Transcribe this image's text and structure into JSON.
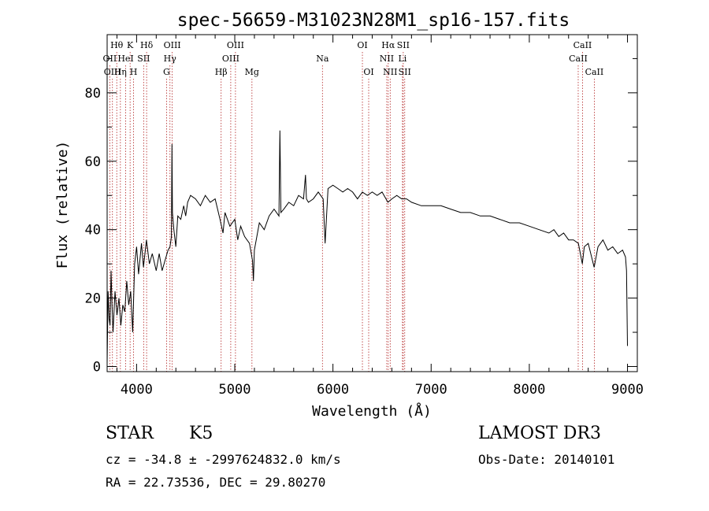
{
  "chart_data": {
    "type": "line",
    "title": "spec-56659-M31023N28M1_sp16-157.fits",
    "xlabel": "Wavelength (Å)",
    "ylabel": "Flux (relative)",
    "xlim": [
      3700,
      9100
    ],
    "ylim": [
      -1.5,
      97
    ],
    "xticks": [
      4000,
      5000,
      6000,
      7000,
      8000,
      9000
    ],
    "yticks": [
      0,
      20,
      40,
      60,
      80
    ],
    "x_tick_labels": [
      "4000",
      "5000",
      "6000",
      "7000",
      "8000",
      "9000"
    ],
    "y_tick_labels": [
      "0",
      "20",
      "40",
      "60",
      "80"
    ],
    "series": [
      {
        "name": "flux",
        "points": [
          [
            3700,
            1
          ],
          [
            3710,
            22
          ],
          [
            3720,
            14
          ],
          [
            3730,
            12
          ],
          [
            3740,
            28
          ],
          [
            3750,
            18
          ],
          [
            3760,
            10
          ],
          [
            3780,
            22
          ],
          [
            3800,
            15
          ],
          [
            3820,
            20
          ],
          [
            3840,
            12
          ],
          [
            3860,
            18
          ],
          [
            3880,
            16
          ],
          [
            3900,
            25
          ],
          [
            3920,
            18
          ],
          [
            3940,
            22
          ],
          [
            3960,
            10
          ],
          [
            3980,
            30
          ],
          [
            4000,
            35
          ],
          [
            4020,
            27
          ],
          [
            4050,
            36
          ],
          [
            4070,
            29
          ],
          [
            4100,
            37
          ],
          [
            4130,
            30
          ],
          [
            4160,
            33
          ],
          [
            4200,
            28
          ],
          [
            4230,
            33
          ],
          [
            4260,
            28
          ],
          [
            4290,
            31
          ],
          [
            4320,
            34
          ],
          [
            4340,
            35
          ],
          [
            4355,
            38
          ],
          [
            4360,
            65
          ],
          [
            4365,
            45
          ],
          [
            4380,
            40
          ],
          [
            4400,
            35
          ],
          [
            4420,
            44
          ],
          [
            4450,
            43
          ],
          [
            4480,
            47
          ],
          [
            4500,
            44
          ],
          [
            4520,
            48
          ],
          [
            4550,
            50
          ],
          [
            4600,
            49
          ],
          [
            4650,
            47
          ],
          [
            4700,
            50
          ],
          [
            4750,
            48
          ],
          [
            4800,
            49
          ],
          [
            4850,
            43
          ],
          [
            4880,
            39
          ],
          [
            4900,
            45
          ],
          [
            4950,
            41
          ],
          [
            5000,
            43
          ],
          [
            5030,
            37
          ],
          [
            5060,
            41
          ],
          [
            5100,
            38
          ],
          [
            5150,
            36
          ],
          [
            5180,
            31
          ],
          [
            5190,
            25
          ],
          [
            5200,
            34
          ],
          [
            5250,
            42
          ],
          [
            5300,
            40
          ],
          [
            5350,
            44
          ],
          [
            5400,
            46
          ],
          [
            5450,
            44
          ],
          [
            5460,
            69
          ],
          [
            5470,
            45
          ],
          [
            5500,
            46
          ],
          [
            5550,
            48
          ],
          [
            5600,
            47
          ],
          [
            5650,
            50
          ],
          [
            5700,
            49
          ],
          [
            5720,
            56
          ],
          [
            5730,
            49
          ],
          [
            5750,
            48
          ],
          [
            5800,
            49
          ],
          [
            5850,
            51
          ],
          [
            5900,
            49
          ],
          [
            5920,
            36
          ],
          [
            5950,
            52
          ],
          [
            6000,
            53
          ],
          [
            6050,
            52
          ],
          [
            6100,
            51
          ],
          [
            6150,
            52
          ],
          [
            6200,
            51
          ],
          [
            6250,
            49
          ],
          [
            6300,
            51
          ],
          [
            6350,
            50
          ],
          [
            6400,
            51
          ],
          [
            6450,
            50
          ],
          [
            6500,
            51
          ],
          [
            6560,
            48
          ],
          [
            6600,
            49
          ],
          [
            6650,
            50
          ],
          [
            6700,
            49
          ],
          [
            6750,
            49
          ],
          [
            6800,
            48
          ],
          [
            6900,
            47
          ],
          [
            7000,
            47
          ],
          [
            7100,
            47
          ],
          [
            7200,
            46
          ],
          [
            7300,
            45
          ],
          [
            7400,
            45
          ],
          [
            7500,
            44
          ],
          [
            7600,
            44
          ],
          [
            7700,
            43
          ],
          [
            7800,
            42
          ],
          [
            7900,
            42
          ],
          [
            8000,
            41
          ],
          [
            8100,
            40
          ],
          [
            8200,
            39
          ],
          [
            8250,
            40
          ],
          [
            8300,
            38
          ],
          [
            8350,
            39
          ],
          [
            8400,
            37
          ],
          [
            8450,
            37
          ],
          [
            8500,
            36
          ],
          [
            8540,
            30
          ],
          [
            8560,
            35
          ],
          [
            8600,
            36
          ],
          [
            8660,
            29
          ],
          [
            8700,
            35
          ],
          [
            8750,
            37
          ],
          [
            8800,
            34
          ],
          [
            8850,
            35
          ],
          [
            8900,
            33
          ],
          [
            8950,
            34
          ],
          [
            8980,
            32
          ],
          [
            8990,
            28
          ],
          [
            9000,
            6
          ]
        ]
      }
    ],
    "lines": [
      {
        "label": "Hθ",
        "x": 3798,
        "row": 1
      },
      {
        "label": "OII",
        "x": 3727,
        "row": 2
      },
      {
        "label": "OIII",
        "x": 3754,
        "row": 3
      },
      {
        "label": "K",
        "x": 3934,
        "row": 1
      },
      {
        "label": "HeI",
        "x": 3889,
        "row": 2
      },
      {
        "label": "Hη",
        "x": 3835,
        "row": 3
      },
      {
        "label": "SII",
        "x": 4072,
        "row": 2
      },
      {
        "label": "H",
        "x": 3969,
        "row": 3
      },
      {
        "label": "Hδ",
        "x": 4102,
        "row": 1
      },
      {
        "label": "OIII",
        "x": 4363,
        "row": 1
      },
      {
        "label": "Hγ",
        "x": 4340,
        "row": 2
      },
      {
        "label": "G",
        "x": 4305,
        "row": 3
      },
      {
        "label": "Hβ",
        "x": 4861,
        "row": 3
      },
      {
        "label": "OIII",
        "x": 5007,
        "row": 1
      },
      {
        "label": "OIII",
        "x": 4959,
        "row": 2
      },
      {
        "label": "Mg",
        "x": 5175,
        "row": 3
      },
      {
        "label": "Na",
        "x": 5893,
        "row": 2
      },
      {
        "label": "OI",
        "x": 6300,
        "row": 1
      },
      {
        "label": "OI",
        "x": 6364,
        "row": 3
      },
      {
        "label": "Hα",
        "x": 6563,
        "row": 1
      },
      {
        "label": "NII",
        "x": 6548,
        "row": 2
      },
      {
        "label": "NII",
        "x": 6583,
        "row": 3
      },
      {
        "label": "SII",
        "x": 6716,
        "row": 1
      },
      {
        "label": "Li",
        "x": 6708,
        "row": 2
      },
      {
        "label": "SII",
        "x": 6731,
        "row": 3
      },
      {
        "label": "CaII",
        "x": 8542,
        "row": 1
      },
      {
        "label": "CaII",
        "x": 8498,
        "row": 2
      },
      {
        "label": "CaII",
        "x": 8662,
        "row": 3
      }
    ]
  },
  "info": {
    "object_type": "STAR",
    "subclass": "K5",
    "survey": "LAMOST DR3",
    "cz_line": "cz = -34.8 ± -2997624832.0 km/s",
    "obs_date": "Obs-Date: 20140101",
    "coords": "RA =  22.73536, DEC =  29.80270"
  }
}
